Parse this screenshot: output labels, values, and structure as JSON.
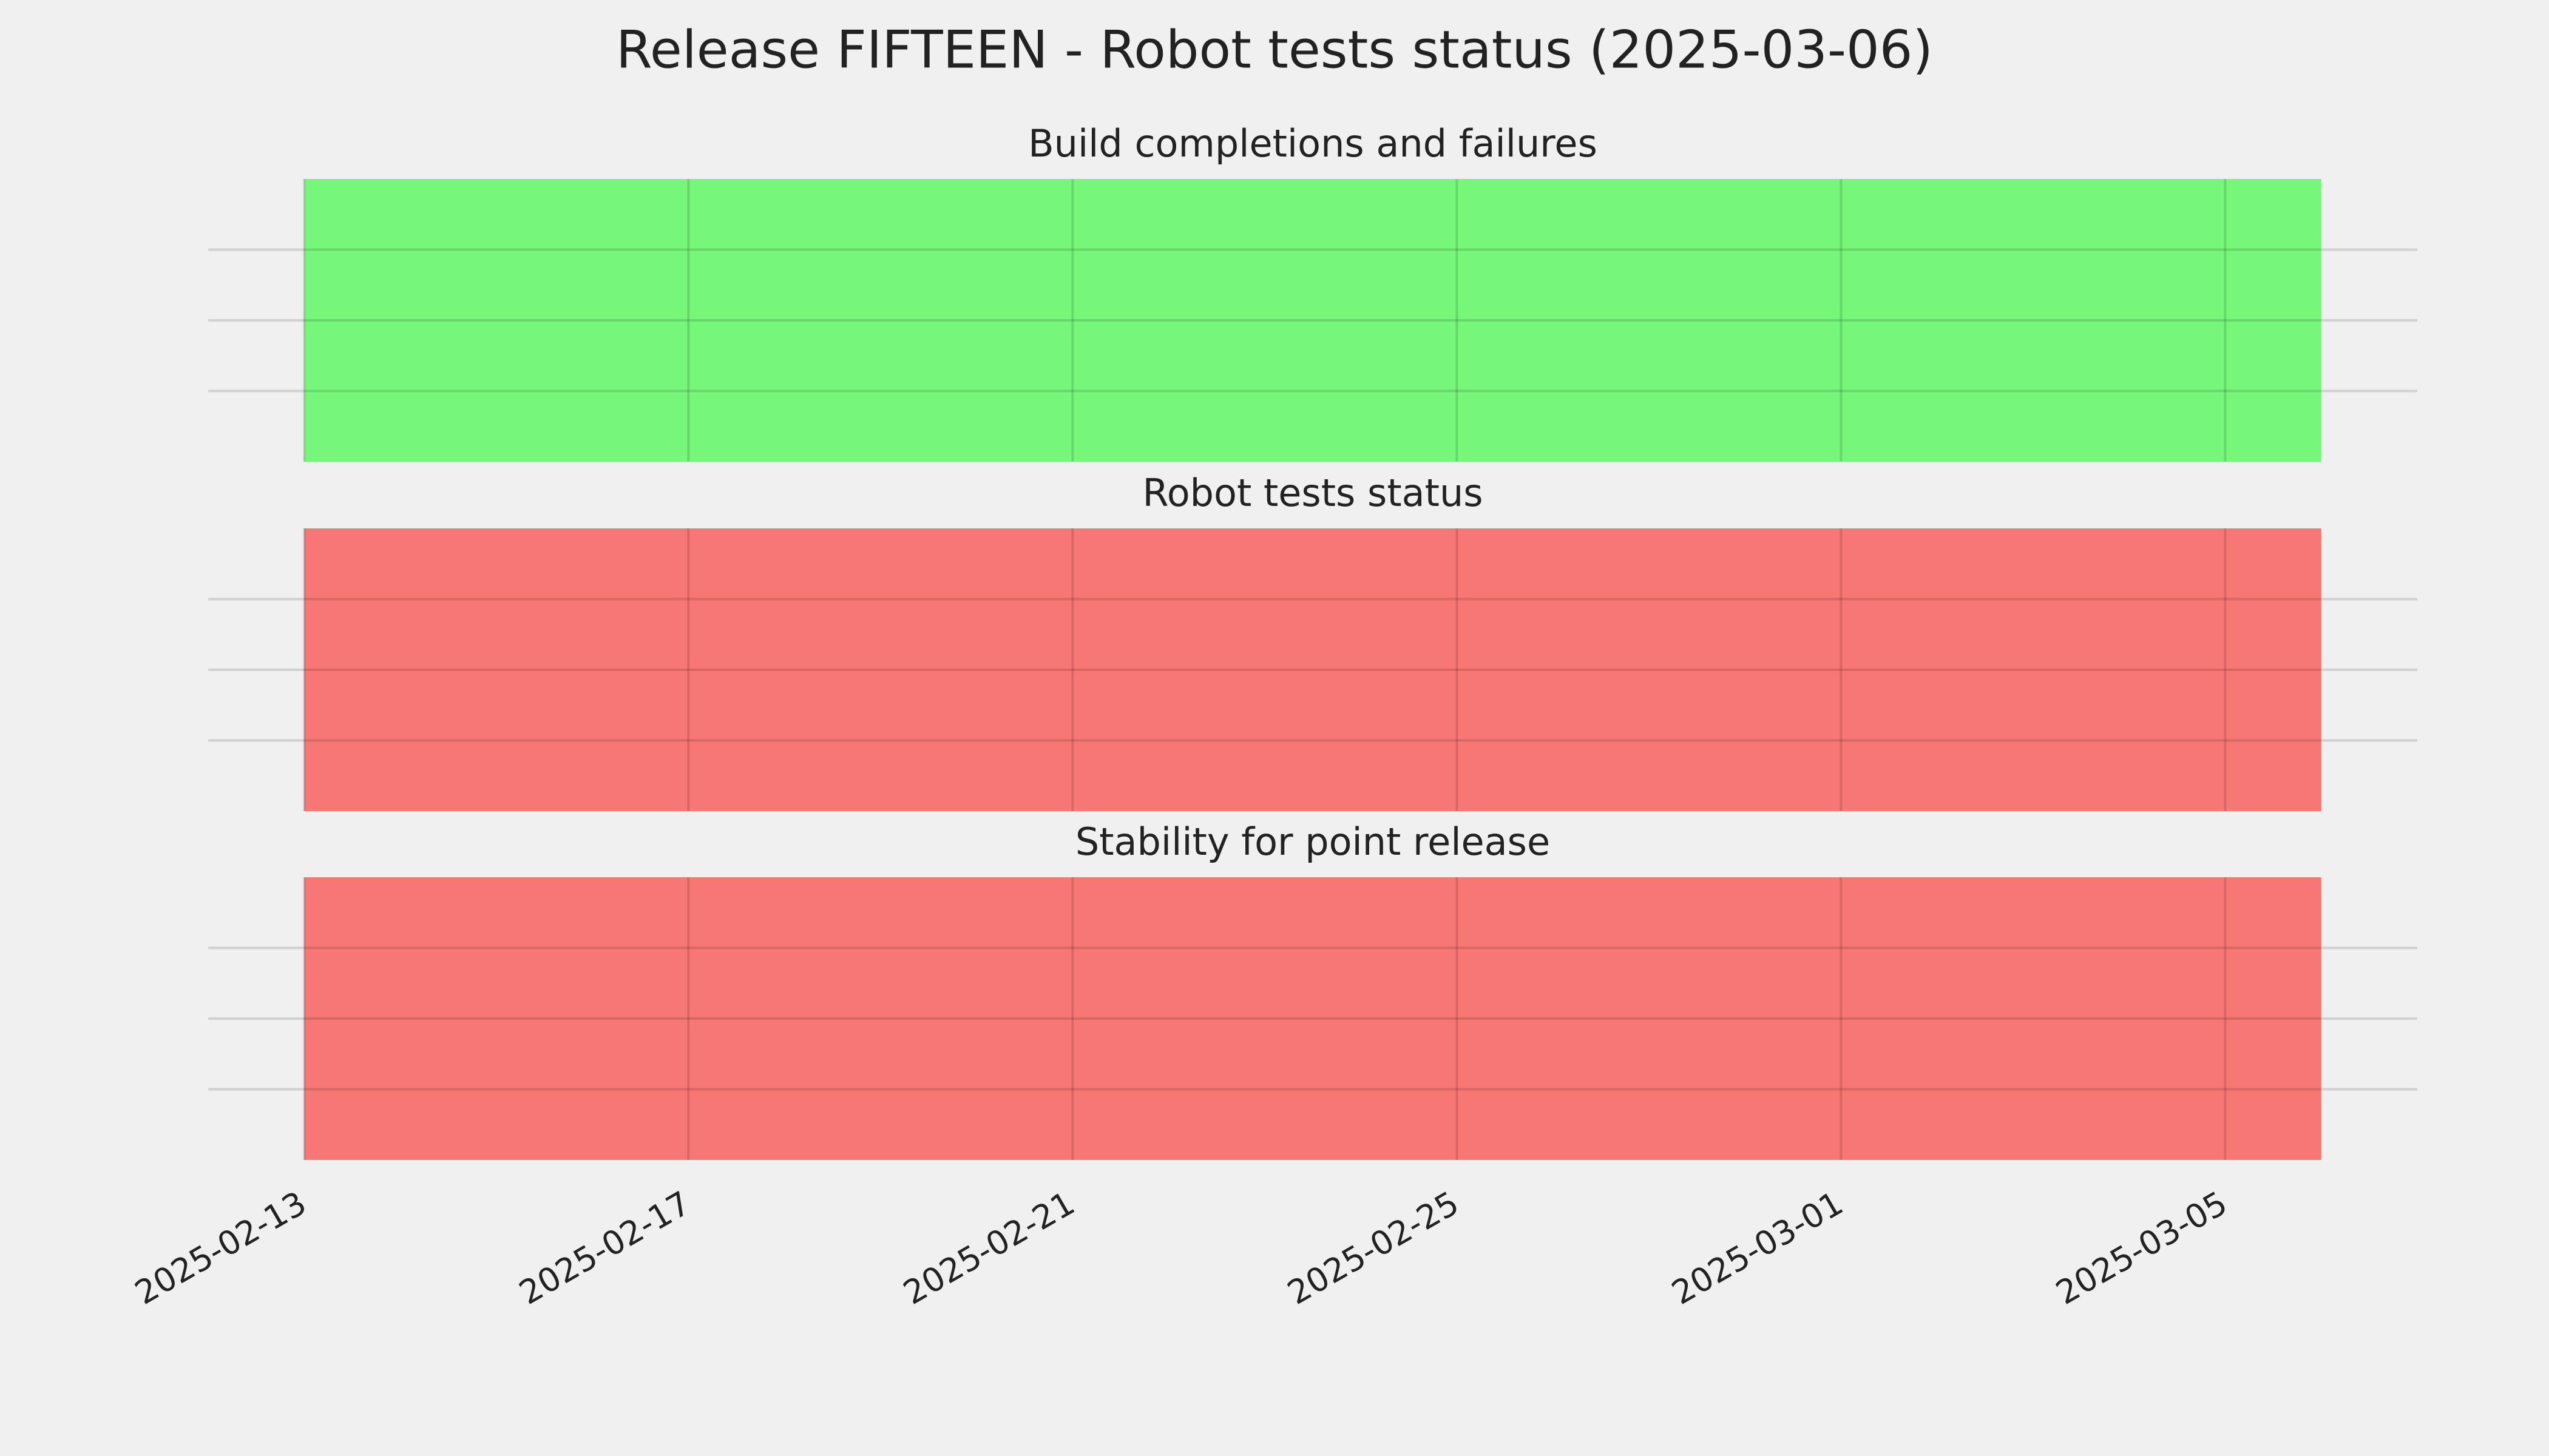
{
  "title": "Release FIFTEEN - Robot tests status (2025-03-06)",
  "chart_data": [
    {
      "type": "span",
      "title": "Build completions and failures",
      "x": [
        "2025-02-13",
        "2025-03-06"
      ],
      "color": "#77f77a",
      "xlim": [
        "2025-02-12",
        "2025-03-07"
      ],
      "xticks": [
        "2025-02-13",
        "2025-02-17",
        "2025-02-21",
        "2025-02-25",
        "2025-03-01",
        "2025-03-05"
      ],
      "show_xtick_labels": false,
      "ylim": [
        0,
        1
      ],
      "yticks": [
        0.25,
        0.5,
        0.75
      ],
      "grid": true
    },
    {
      "type": "span",
      "title": "Robot tests status",
      "x": [
        "2025-02-13",
        "2025-03-06"
      ],
      "color": "#f77775",
      "xlim": [
        "2025-02-12",
        "2025-03-07"
      ],
      "xticks": [
        "2025-02-13",
        "2025-02-17",
        "2025-02-21",
        "2025-02-25",
        "2025-03-01",
        "2025-03-05"
      ],
      "show_xtick_labels": false,
      "ylim": [
        0,
        1
      ],
      "yticks": [
        0.25,
        0.5,
        0.75
      ],
      "grid": true
    },
    {
      "type": "span",
      "title": "Stability for point release",
      "x": [
        "2025-02-13",
        "2025-03-06"
      ],
      "color": "#f77775",
      "xlim": [
        "2025-02-12",
        "2025-03-07"
      ],
      "xticks": [
        "2025-02-13",
        "2025-02-17",
        "2025-02-21",
        "2025-02-25",
        "2025-03-01",
        "2025-03-05"
      ],
      "show_xtick_labels": true,
      "ylim": [
        0,
        1
      ],
      "yticks": [
        0.25,
        0.5,
        0.75
      ],
      "grid": true
    }
  ]
}
